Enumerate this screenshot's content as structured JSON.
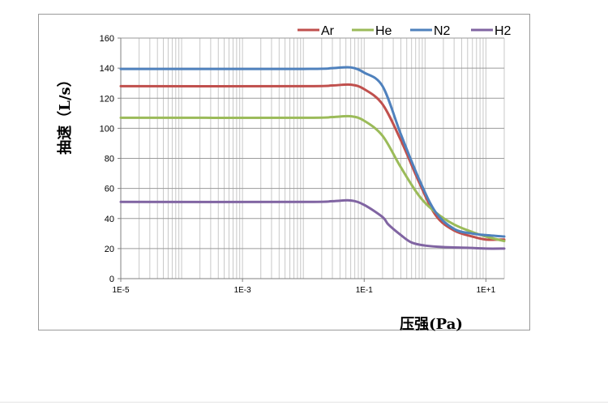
{
  "chart_data": {
    "type": "line",
    "title": "",
    "xlabel": "压强(Pa)",
    "ylabel": "抽速（L/s）",
    "xscale": "log",
    "xlim": [
      1e-05,
      20
    ],
    "ylim": [
      0,
      160
    ],
    "xticks": [
      {
        "value": 1e-05,
        "label": "1E-5"
      },
      {
        "value": 0.001,
        "label": "1E-3"
      },
      {
        "value": 0.1,
        "label": "1E-1"
      },
      {
        "value": 10,
        "label": "1E+1"
      }
    ],
    "yticks": [
      0,
      20,
      40,
      60,
      80,
      100,
      120,
      140,
      160
    ],
    "grid": true,
    "legend_position": "top",
    "series": [
      {
        "name": "Ar",
        "color": "#c0504d",
        "points": [
          [
            1e-05,
            128
          ],
          [
            0.01,
            128
          ],
          [
            0.03,
            128.5
          ],
          [
            0.06,
            129
          ],
          [
            0.1,
            126
          ],
          [
            0.2,
            116
          ],
          [
            0.4,
            92
          ],
          [
            0.8,
            64
          ],
          [
            1.5,
            42
          ],
          [
            3,
            32
          ],
          [
            6,
            28
          ],
          [
            10,
            26
          ],
          [
            20,
            26
          ]
        ]
      },
      {
        "name": "He",
        "color": "#9bbb59",
        "points": [
          [
            1e-05,
            107
          ],
          [
            0.01,
            107
          ],
          [
            0.03,
            107.5
          ],
          [
            0.06,
            108
          ],
          [
            0.1,
            105
          ],
          [
            0.2,
            95
          ],
          [
            0.4,
            74
          ],
          [
            0.8,
            55
          ],
          [
            1.5,
            44
          ],
          [
            3,
            36
          ],
          [
            6,
            31
          ],
          [
            10,
            28
          ],
          [
            20,
            25
          ]
        ]
      },
      {
        "name": "N2",
        "color": "#4f81bd",
        "points": [
          [
            1e-05,
            139.5
          ],
          [
            0.01,
            139.5
          ],
          [
            0.03,
            140
          ],
          [
            0.06,
            140.5
          ],
          [
            0.1,
            137
          ],
          [
            0.2,
            128
          ],
          [
            0.4,
            96
          ],
          [
            0.8,
            66
          ],
          [
            1.5,
            44
          ],
          [
            3,
            33
          ],
          [
            6,
            30
          ],
          [
            10,
            29
          ],
          [
            20,
            28
          ]
        ]
      },
      {
        "name": "H2",
        "color": "#8064a2",
        "points": [
          [
            1e-05,
            51
          ],
          [
            0.01,
            51
          ],
          [
            0.03,
            51.5
          ],
          [
            0.06,
            52
          ],
          [
            0.1,
            49
          ],
          [
            0.2,
            41
          ],
          [
            0.25,
            36
          ],
          [
            0.4,
            29
          ],
          [
            0.6,
            24
          ],
          [
            1,
            22
          ],
          [
            2,
            21
          ],
          [
            5,
            20.5
          ],
          [
            10,
            20
          ],
          [
            20,
            20
          ]
        ]
      }
    ]
  }
}
